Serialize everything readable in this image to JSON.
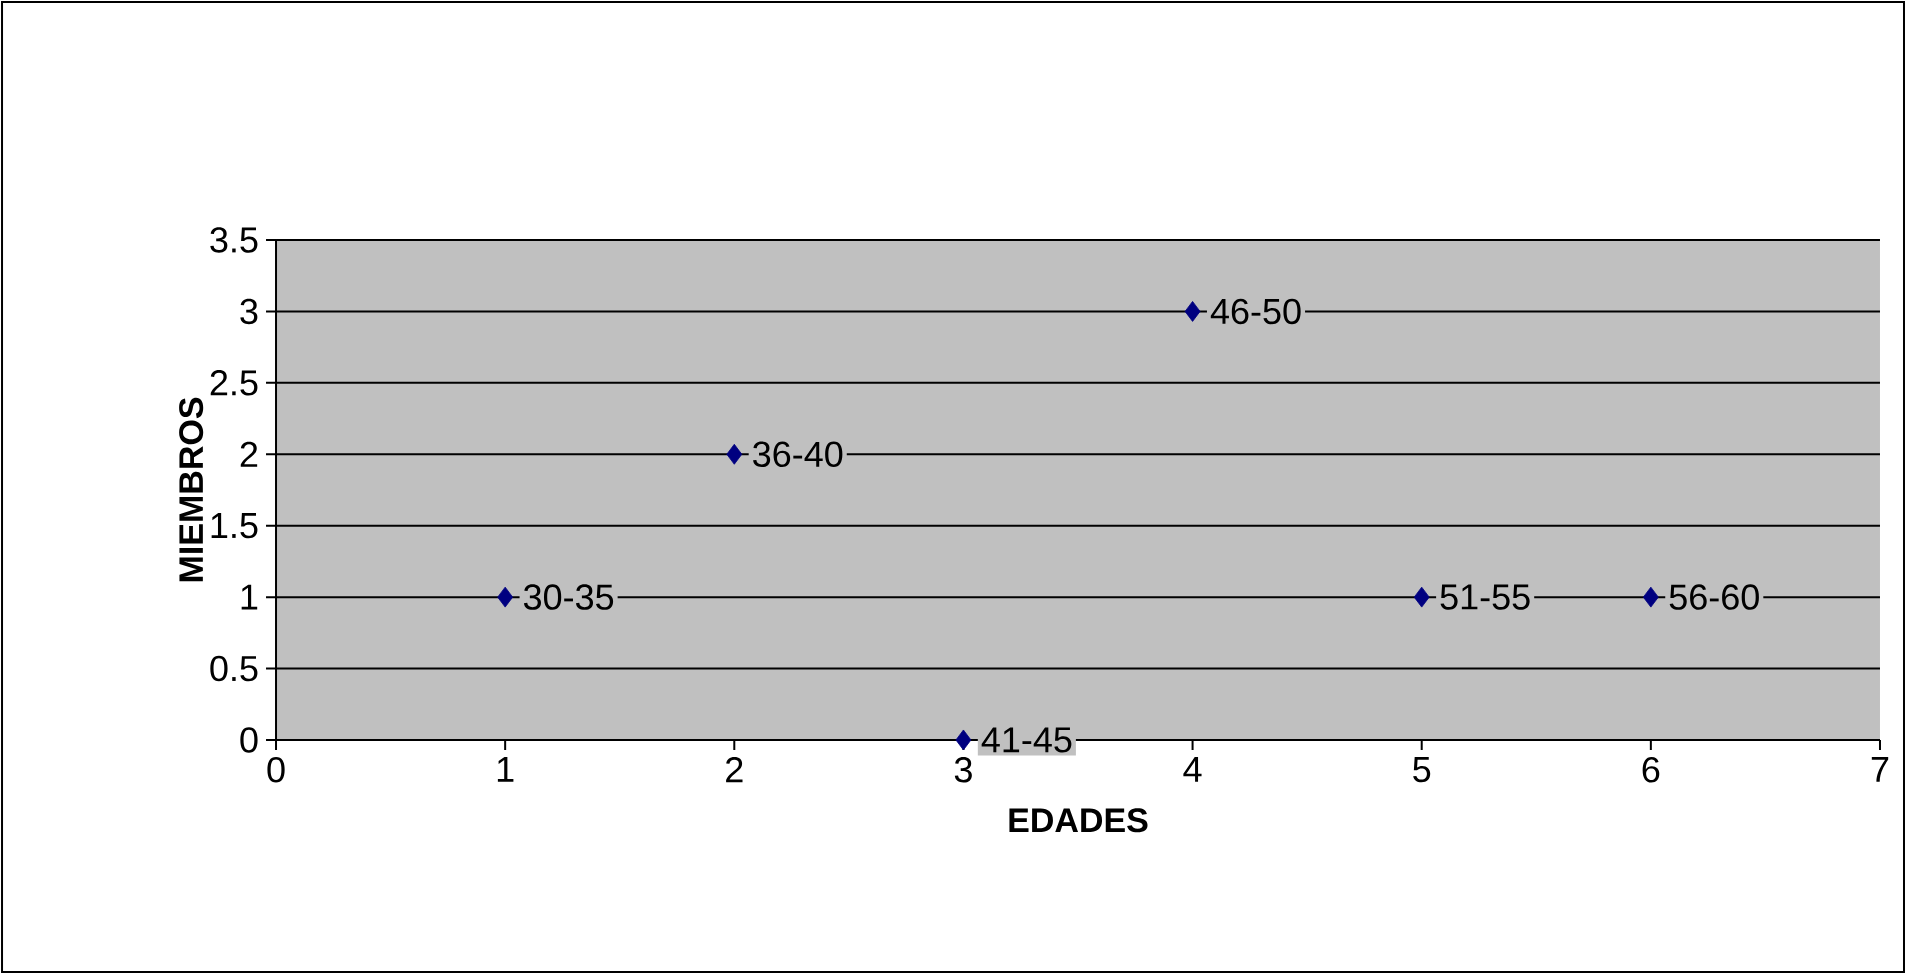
{
  "chart_data": {
    "type": "scatter",
    "xlabel": "EDADES",
    "ylabel": "MIEMBROS",
    "x": [
      1,
      2,
      3,
      4,
      5,
      6
    ],
    "values": [
      1,
      2,
      0,
      3,
      1,
      1
    ],
    "color": "#000080",
    "marker": "diamond",
    "xlim": [
      0,
      7
    ],
    "xticks": [
      0,
      1,
      2,
      3,
      4,
      5,
      6,
      7
    ],
    "ylim": [
      0,
      3.5
    ],
    "yticks": [
      0,
      0.5,
      1,
      1.5,
      2,
      2.5,
      3,
      3.5
    ],
    "grid": "y",
    "annotations": [
      {
        "text": "30-35",
        "x": 1,
        "y": 1
      },
      {
        "text": "36-40",
        "x": 2,
        "y": 2
      },
      {
        "text": "41-45",
        "x": 3,
        "y": 0
      },
      {
        "text": "46-50",
        "x": 4,
        "y": 3
      },
      {
        "text": "51-55",
        "x": 5,
        "y": 1
      },
      {
        "text": "56-60",
        "x": 6,
        "y": 1
      }
    ]
  }
}
